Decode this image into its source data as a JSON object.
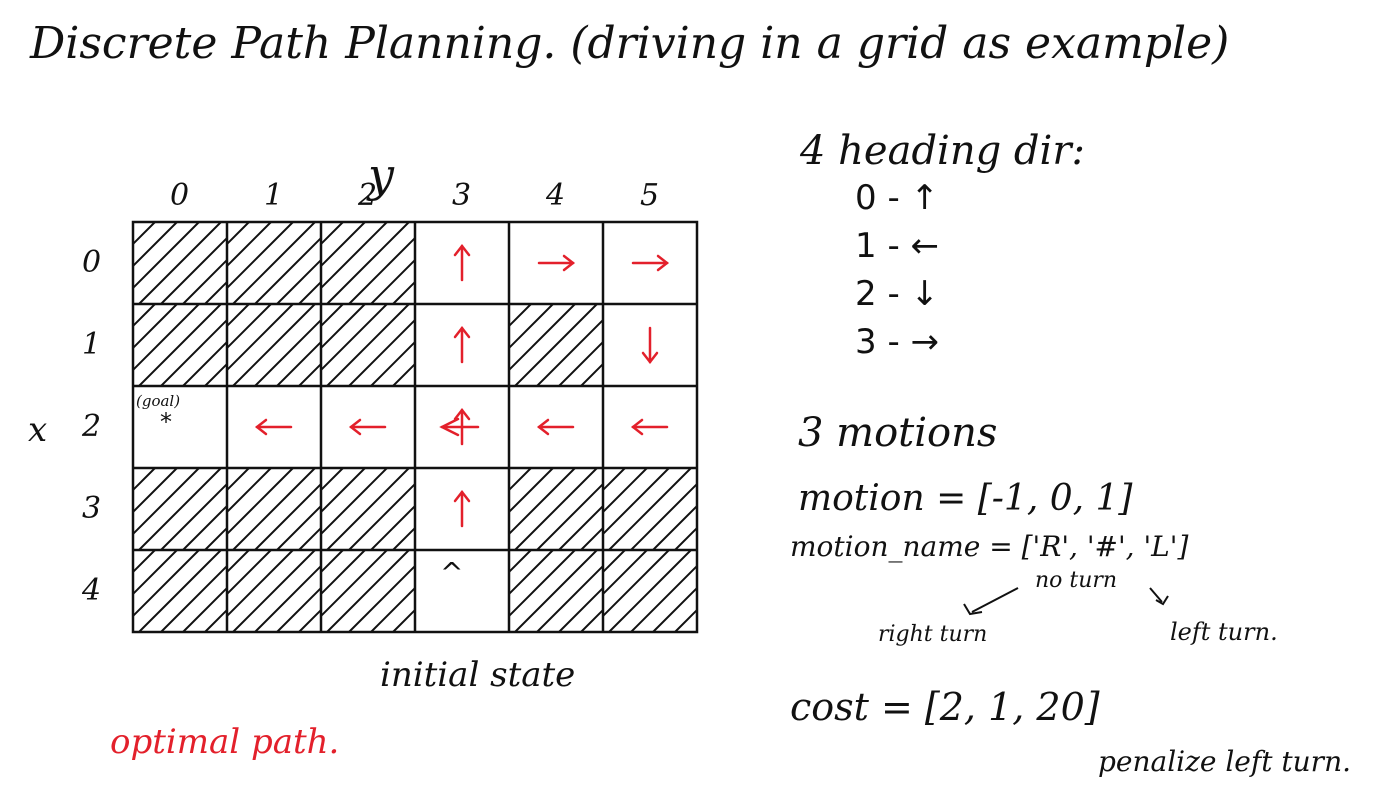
{
  "title": "Discrete Path Planning. (driving in a grid as example)",
  "grid": {
    "axis_y_label": "y",
    "axis_x_label": "x",
    "col_labels": [
      "0",
      "1",
      "2",
      "3",
      "4",
      "5"
    ],
    "row_labels": [
      "0",
      "1",
      "2",
      "3",
      "4"
    ],
    "goal_label": "(goal)",
    "goal_marker": "*",
    "initial_marker": "^",
    "initial_state_label": "initial state",
    "obstacles": [
      [
        0,
        0
      ],
      [
        0,
        1
      ],
      [
        0,
        2
      ],
      [
        1,
        0
      ],
      [
        1,
        1
      ],
      [
        1,
        2
      ],
      [
        1,
        4
      ],
      [
        3,
        0
      ],
      [
        3,
        1
      ],
      [
        3,
        2
      ],
      [
        3,
        4
      ],
      [
        3,
        5
      ],
      [
        4,
        0
      ],
      [
        4,
        1
      ],
      [
        4,
        2
      ],
      [
        4,
        4
      ],
      [
        4,
        5
      ]
    ],
    "path_arrows": [
      {
        "row": 0,
        "col": 3,
        "dir": "up"
      },
      {
        "row": 0,
        "col": 4,
        "dir": "right"
      },
      {
        "row": 0,
        "col": 5,
        "dir": "right"
      },
      {
        "row": 1,
        "col": 3,
        "dir": "up"
      },
      {
        "row": 1,
        "col": 5,
        "dir": "down"
      },
      {
        "row": 2,
        "col": 1,
        "dir": "left"
      },
      {
        "row": 2,
        "col": 2,
        "dir": "left"
      },
      {
        "row": 2,
        "col": 3,
        "dir": "up-left"
      },
      {
        "row": 2,
        "col": 4,
        "dir": "left"
      },
      {
        "row": 2,
        "col": 5,
        "dir": "left"
      },
      {
        "row": 3,
        "col": 3,
        "dir": "up"
      }
    ],
    "path_color": "#e3202b",
    "ink_color": "#111111"
  },
  "optimal_path_label": "optimal path.",
  "heading": {
    "title": "4 heading dir:",
    "items": [
      {
        "label": "0 - ",
        "glyph": "↑"
      },
      {
        "label": "1 - ",
        "glyph": "←"
      },
      {
        "label": "2 - ",
        "glyph": "↓"
      },
      {
        "label": "3 - ",
        "glyph": "→"
      }
    ]
  },
  "motions": {
    "title": "3 motions",
    "motion_line": "motion = [-1, 0, 1]",
    "motion_name_line": "motion_name = ['R', '#', 'L']",
    "no_turn": "no turn",
    "right_turn": "right turn",
    "left_turn": "left turn.",
    "cost_line": "cost = [2, 1, 20]",
    "penalize": "penalize left turn."
  }
}
